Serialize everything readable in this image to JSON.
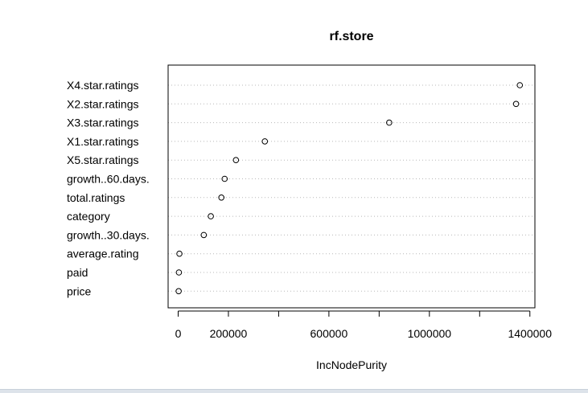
{
  "chart_data": {
    "type": "scatter",
    "title": "rf.store",
    "xlabel": "IncNodePurity",
    "ylabel": "",
    "xlim": [
      -40000,
      1420000
    ],
    "xticks": [
      0,
      200000,
      400000,
      600000,
      800000,
      1000000,
      1200000,
      1400000
    ],
    "xtick_labels": [
      "0",
      "200000",
      "",
      "600000",
      "",
      "1000000",
      "",
      "1400000"
    ],
    "grid": "horizontal dotted",
    "legend": "none",
    "point_style": "open circle",
    "categories": [
      "X4.star.ratings",
      "X2.star.ratings",
      "X3.star.ratings",
      "X1.star.ratings",
      "X5.star.ratings",
      "growth..60.days.",
      "total.ratings",
      "category",
      "growth..30.days.",
      "average.rating",
      "paid",
      "price"
    ],
    "values": [
      1360000,
      1345000,
      840000,
      345000,
      230000,
      185000,
      172000,
      130000,
      102000,
      5000,
      3000,
      2000
    ]
  }
}
